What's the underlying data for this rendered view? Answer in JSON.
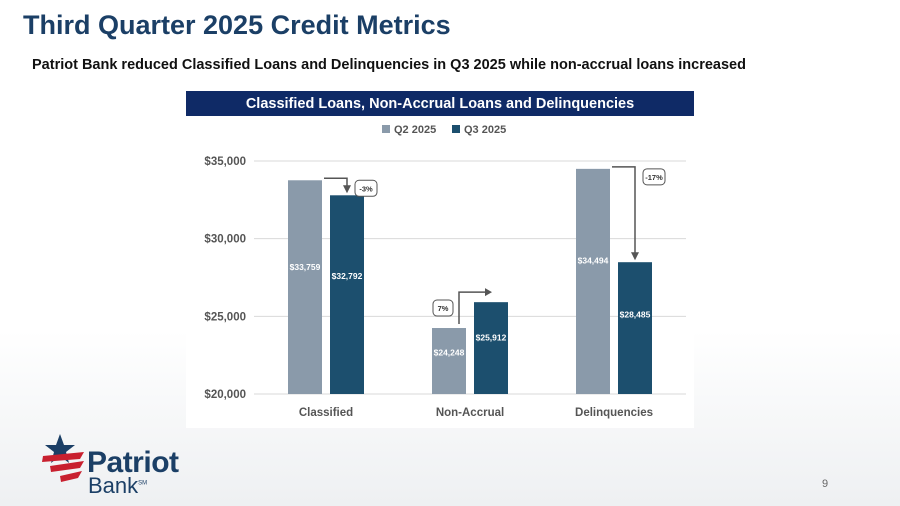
{
  "slide": {
    "title": "Third Quarter 2025 Credit Metrics",
    "subtitle": "Patriot Bank reduced Classified Loans and Delinquencies in Q3 2025 while non-accrual loans increased",
    "page_number": "9"
  },
  "brand": {
    "name_primary": "Patriot",
    "name_secondary": "Bank",
    "trademark": "SM",
    "colors": {
      "navy": "#1b3f66",
      "red": "#c8202f"
    }
  },
  "chart_header": "Classified Loans, Non-Accrual Loans and Delinquencies",
  "chart_data": {
    "type": "bar",
    "title": "Classified Loans, Non-Accrual Loans and Delinquencies",
    "categories": [
      "Classified",
      "Non-Accrual",
      "Delinquencies"
    ],
    "series": [
      {
        "name": "Q2 2025",
        "color": "#8a9aaa",
        "values": [
          33759,
          24248,
          34494
        ],
        "labels": [
          "$33,759",
          "$24,248",
          "$34,494"
        ]
      },
      {
        "name": "Q3 2025",
        "color": "#1c4f6e",
        "values": [
          32792,
          25912,
          28485
        ],
        "labels": [
          "$32,792",
          "$25,912",
          "$28,485"
        ]
      }
    ],
    "changes": [
      "-3%",
      "7%",
      "-17%"
    ],
    "ylim": [
      20000,
      35000
    ],
    "yticks": [
      20000,
      25000,
      30000,
      35000
    ],
    "ytick_labels": [
      "$20,000",
      "$25,000",
      "$30,000",
      "$35,000"
    ],
    "legend_position": "top-center",
    "grid": true,
    "xlabel": "",
    "ylabel": ""
  }
}
